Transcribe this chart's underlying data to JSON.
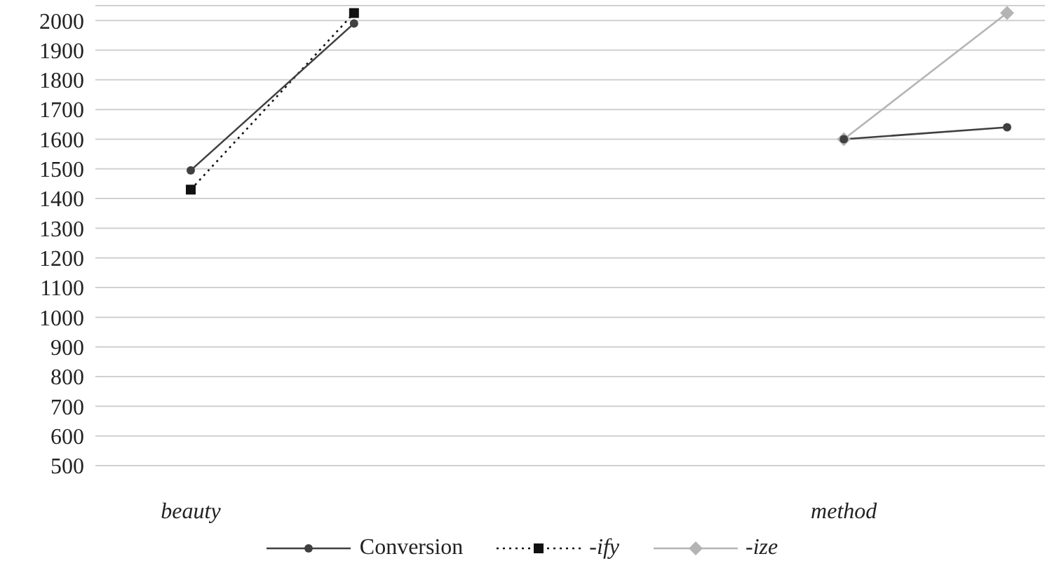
{
  "chart_data": {
    "type": "line",
    "categories": [
      "beauty",
      null,
      null,
      null,
      "method",
      null
    ],
    "series": [
      {
        "name": "Conversion",
        "color": "#404040",
        "marker": "circle",
        "line_style": "solid",
        "values": [
          1495,
          1990,
          null,
          null,
          1600,
          1640
        ]
      },
      {
        "name": "-ify",
        "color": "#111111",
        "marker": "square",
        "line_style": "dotted",
        "values": [
          1430,
          2025,
          null,
          null,
          null,
          null
        ]
      },
      {
        "name": "-ize",
        "color": "#b4b4b4",
        "marker": "diamond",
        "line_style": "solid",
        "values": [
          null,
          null,
          null,
          null,
          1600,
          2025
        ]
      }
    ],
    "ylim": [
      500,
      2050
    ],
    "yticks": [
      500,
      600,
      700,
      800,
      900,
      1000,
      1100,
      1200,
      1300,
      1400,
      1500,
      1600,
      1700,
      1800,
      1900,
      2000
    ],
    "grid": "y",
    "legend": "bottom"
  }
}
